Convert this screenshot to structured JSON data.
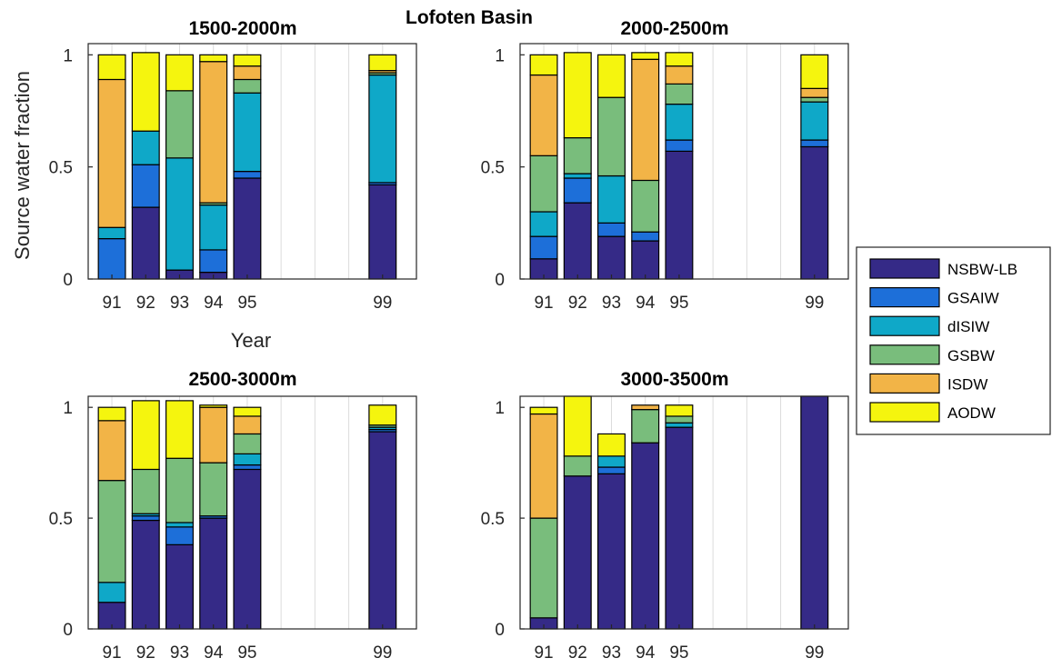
{
  "figure_title": "Lofoten Basin",
  "chart_data": [
    {
      "type": "bar",
      "stacked": true,
      "title": "1500-2000m",
      "xlabel": "Year",
      "ylabel": "Source water fraction",
      "categories": [
        "91",
        "92",
        "93",
        "94",
        "95",
        "99"
      ],
      "x": [
        91,
        92,
        93,
        94,
        95,
        99
      ],
      "xlim": [
        90.3,
        100
      ],
      "ylim": [
        0,
        1.05
      ],
      "yticks": [
        "0",
        "0.5",
        "1"
      ],
      "grid": "vertical",
      "series": [
        {
          "name": "NSBW-LB",
          "values": [
            0.0,
            0.32,
            0.04,
            0.03,
            0.45,
            0.42
          ]
        },
        {
          "name": "GSAIW",
          "values": [
            0.18,
            0.19,
            0.0,
            0.1,
            0.03,
            0.01
          ]
        },
        {
          "name": "dISIW",
          "values": [
            0.05,
            0.15,
            0.5,
            0.2,
            0.35,
            0.48
          ]
        },
        {
          "name": "GSBW",
          "values": [
            0.0,
            0.0,
            0.3,
            0.01,
            0.06,
            0.01
          ]
        },
        {
          "name": "ISDW",
          "values": [
            0.66,
            0.0,
            0.0,
            0.63,
            0.06,
            0.01
          ]
        },
        {
          "name": "AODW",
          "values": [
            0.11,
            0.35,
            0.16,
            0.03,
            0.05,
            0.07
          ]
        }
      ]
    },
    {
      "type": "bar",
      "stacked": true,
      "title": "2000-2500m",
      "categories": [
        "91",
        "92",
        "93",
        "94",
        "95",
        "99"
      ],
      "x": [
        91,
        92,
        93,
        94,
        95,
        99
      ],
      "xlim": [
        90.3,
        100
      ],
      "ylim": [
        0,
        1.05
      ],
      "yticks": [
        "0",
        "0.5",
        "1"
      ],
      "grid": "vertical",
      "series": [
        {
          "name": "NSBW-LB",
          "values": [
            0.09,
            0.34,
            0.19,
            0.17,
            0.57,
            0.59
          ]
        },
        {
          "name": "GSAIW",
          "values": [
            0.1,
            0.11,
            0.06,
            0.04,
            0.05,
            0.03
          ]
        },
        {
          "name": "dISIW",
          "values": [
            0.11,
            0.02,
            0.21,
            0.0,
            0.16,
            0.17
          ]
        },
        {
          "name": "GSBW",
          "values": [
            0.25,
            0.16,
            0.35,
            0.23,
            0.09,
            0.02
          ]
        },
        {
          "name": "ISDW",
          "values": [
            0.36,
            0.0,
            0.0,
            0.54,
            0.08,
            0.04
          ]
        },
        {
          "name": "AODW",
          "values": [
            0.09,
            0.38,
            0.19,
            0.03,
            0.06,
            0.15
          ]
        }
      ]
    },
    {
      "type": "bar",
      "stacked": true,
      "title": "2500-3000m",
      "categories": [
        "91",
        "92",
        "93",
        "94",
        "95",
        "99"
      ],
      "x": [
        91,
        92,
        93,
        94,
        95,
        99
      ],
      "xlim": [
        90.3,
        100
      ],
      "ylim": [
        0,
        1.05
      ],
      "yticks": [
        "0",
        "0.5",
        "1"
      ],
      "grid": "vertical",
      "series": [
        {
          "name": "NSBW-LB",
          "values": [
            0.12,
            0.49,
            0.38,
            0.5,
            0.72,
            0.89
          ]
        },
        {
          "name": "GSAIW",
          "values": [
            0.0,
            0.02,
            0.08,
            0.01,
            0.02,
            0.01
          ]
        },
        {
          "name": "dISIW",
          "values": [
            0.09,
            0.01,
            0.02,
            0.0,
            0.05,
            0.01
          ]
        },
        {
          "name": "GSBW",
          "values": [
            0.46,
            0.2,
            0.29,
            0.24,
            0.09,
            0.01
          ]
        },
        {
          "name": "ISDW",
          "values": [
            0.27,
            0.0,
            0.0,
            0.25,
            0.08,
            0.0
          ]
        },
        {
          "name": "AODW",
          "values": [
            0.06,
            0.31,
            0.26,
            0.01,
            0.04,
            0.09
          ]
        }
      ]
    },
    {
      "type": "bar",
      "stacked": true,
      "title": "3000-3500m",
      "categories": [
        "91",
        "92",
        "93",
        "94",
        "95",
        "99"
      ],
      "x": [
        91,
        92,
        93,
        94,
        95,
        99
      ],
      "xlim": [
        90.3,
        100
      ],
      "ylim": [
        0,
        1.05
      ],
      "yticks": [
        "0",
        "0.5",
        "1"
      ],
      "grid": "vertical",
      "series": [
        {
          "name": "NSBW-LB",
          "values": [
            0.05,
            0.69,
            0.7,
            0.84,
            0.91,
            1.05
          ]
        },
        {
          "name": "GSAIW",
          "values": [
            0.0,
            0.0,
            0.03,
            0.0,
            0.0,
            0.0
          ]
        },
        {
          "name": "dISIW",
          "values": [
            0.0,
            0.0,
            0.05,
            0.0,
            0.02,
            0.0
          ]
        },
        {
          "name": "GSBW",
          "values": [
            0.45,
            0.09,
            0.0,
            0.15,
            0.03,
            0.0
          ]
        },
        {
          "name": "ISDW",
          "values": [
            0.47,
            0.0,
            0.0,
            0.02,
            0.0,
            0.0
          ]
        },
        {
          "name": "AODW",
          "values": [
            0.03,
            0.27,
            0.1,
            0.0,
            0.05,
            0.0
          ]
        }
      ]
    }
  ],
  "legend": {
    "placement": "right",
    "entries": [
      "NSBW-LB",
      "GSAIW",
      "dISIW",
      "GSBW",
      "ISDW",
      "AODW"
    ]
  },
  "colors": {
    "NSBW-LB": "#352a87",
    "GSAIW": "#1d6fd9",
    "dISIW": "#0fa8c8",
    "GSBW": "#79bd7c",
    "ISDW": "#f2b447",
    "AODW": "#f5f50e",
    "grid": "#dcdcdc",
    "axis": "#262626"
  }
}
